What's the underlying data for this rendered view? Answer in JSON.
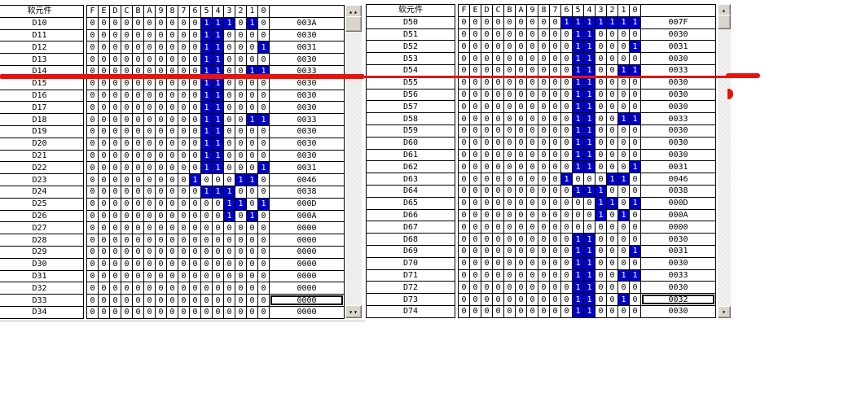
{
  "colors": {
    "bit_on_bg": "#0000c8",
    "bit_on_fg": "#ffffff",
    "grid": "#000000",
    "annotation_red": "#e8120e"
  },
  "bit_headers": [
    "F",
    "E",
    "D",
    "C",
    "B",
    "A",
    "9",
    "8",
    "7",
    "6",
    "5",
    "4",
    "3",
    "2",
    "1",
    "0"
  ],
  "panels": [
    {
      "id": "left",
      "device_header": "软元件",
      "selected_device": "D33",
      "scrollbar": {
        "top_icon": "up-arrow-icon",
        "top_arrow_count": 2,
        "bottom_icon": "down-arrow-icon",
        "bottom_arrow_count": 2
      },
      "rows": [
        {
          "name": "D10",
          "hex": "003A"
        },
        {
          "name": "D11",
          "hex": "0030"
        },
        {
          "name": "D12",
          "hex": "0031"
        },
        {
          "name": "D13",
          "hex": "0030"
        },
        {
          "name": "D14",
          "hex": "0033"
        },
        {
          "name": "D15",
          "hex": "0030"
        },
        {
          "name": "D16",
          "hex": "0030"
        },
        {
          "name": "D17",
          "hex": "0030"
        },
        {
          "name": "D18",
          "hex": "0033"
        },
        {
          "name": "D19",
          "hex": "0030"
        },
        {
          "name": "D20",
          "hex": "0030"
        },
        {
          "name": "D21",
          "hex": "0030"
        },
        {
          "name": "D22",
          "hex": "0031"
        },
        {
          "name": "D23",
          "hex": "0046"
        },
        {
          "name": "D24",
          "hex": "0038"
        },
        {
          "name": "D25",
          "hex": "000D"
        },
        {
          "name": "D26",
          "hex": "000A"
        },
        {
          "name": "D27",
          "hex": "0000"
        },
        {
          "name": "D28",
          "hex": "0000"
        },
        {
          "name": "D29",
          "hex": "0000"
        },
        {
          "name": "D30",
          "hex": "0000"
        },
        {
          "name": "D31",
          "hex": "0000"
        },
        {
          "name": "D32",
          "hex": "0000"
        },
        {
          "name": "D33",
          "hex": "0000"
        },
        {
          "name": "D34",
          "hex": "0000"
        }
      ]
    },
    {
      "id": "right",
      "device_header": "软元件",
      "selected_device": "D73",
      "scrollbar": {
        "top_icon": "up-arrow-icon",
        "top_arrow_count": 1,
        "bottom_icon": "down-arrow-icon",
        "bottom_arrow_count": 1
      },
      "rows": [
        {
          "name": "D50",
          "hex": "007F"
        },
        {
          "name": "D51",
          "hex": "0030"
        },
        {
          "name": "D52",
          "hex": "0031"
        },
        {
          "name": "D53",
          "hex": "0030"
        },
        {
          "name": "D54",
          "hex": "0033"
        },
        {
          "name": "D55",
          "hex": "0030"
        },
        {
          "name": "D56",
          "hex": "0030"
        },
        {
          "name": "D57",
          "hex": "0030"
        },
        {
          "name": "D58",
          "hex": "0033"
        },
        {
          "name": "D59",
          "hex": "0030"
        },
        {
          "name": "D60",
          "hex": "0030"
        },
        {
          "name": "D61",
          "hex": "0030"
        },
        {
          "name": "D62",
          "hex": "0031"
        },
        {
          "name": "D63",
          "hex": "0046"
        },
        {
          "name": "D64",
          "hex": "0038"
        },
        {
          "name": "D65",
          "hex": "000D"
        },
        {
          "name": "D66",
          "hex": "000A"
        },
        {
          "name": "D67",
          "hex": "0000"
        },
        {
          "name": "D68",
          "hex": "0030"
        },
        {
          "name": "D69",
          "hex": "0031"
        },
        {
          "name": "D70",
          "hex": "0030"
        },
        {
          "name": "D71",
          "hex": "0033"
        },
        {
          "name": "D72",
          "hex": "0030"
        },
        {
          "name": "D73",
          "hex": "0032"
        },
        {
          "name": "D74",
          "hex": "0030"
        }
      ]
    }
  ],
  "annotation": {
    "type": "hand-drawn-red-marker-line",
    "color": "#e8120e"
  }
}
